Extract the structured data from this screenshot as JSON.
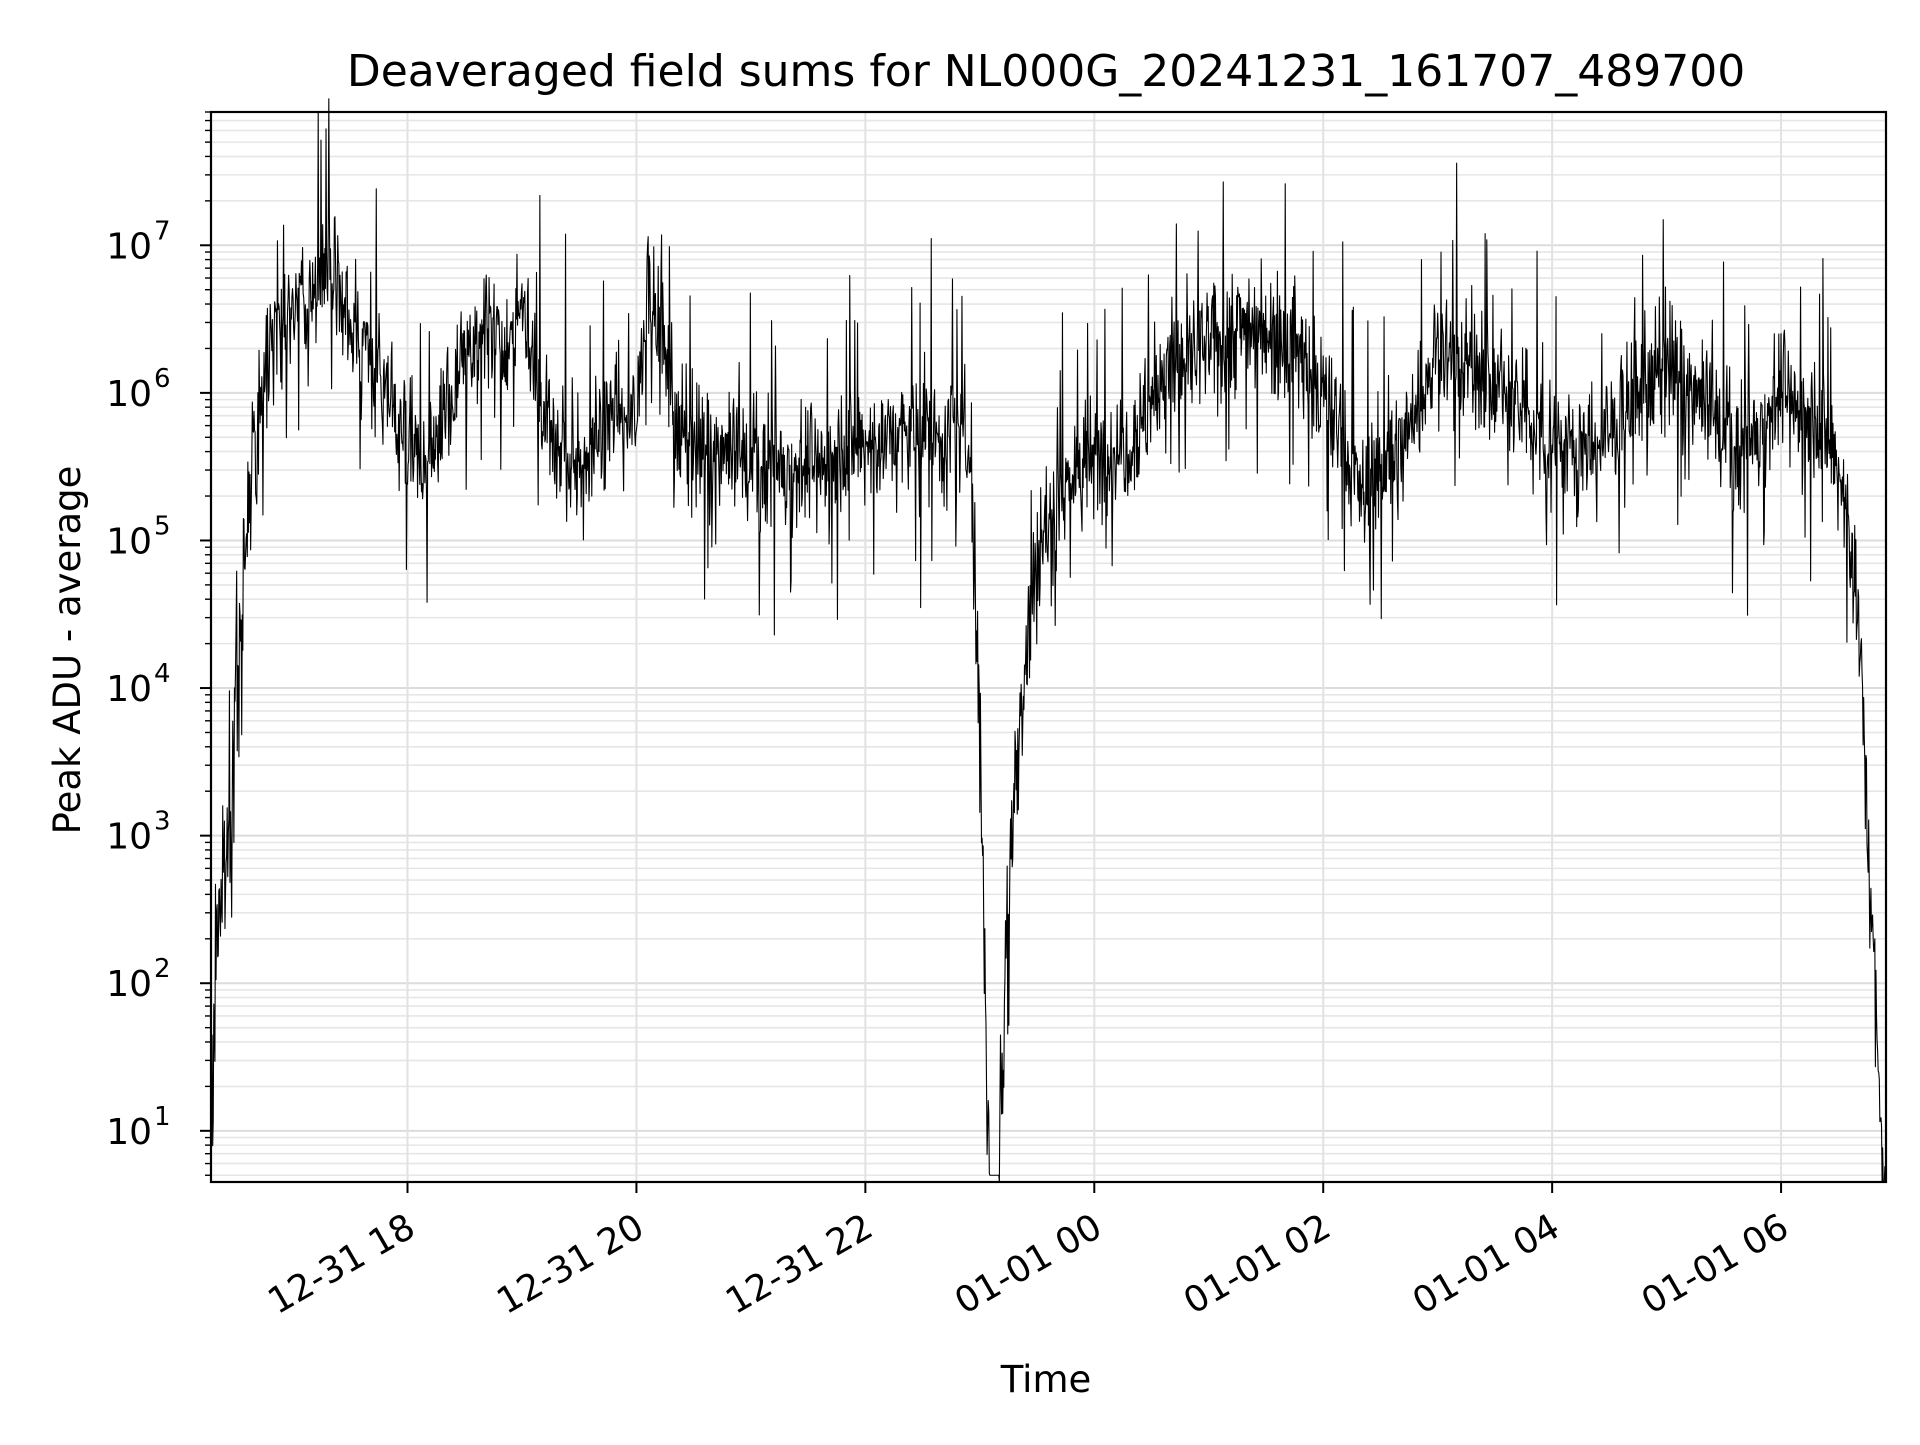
{
  "chart_data": {
    "type": "line",
    "title": "Deaveraged field sums for NL000G_20241231_161707_489700",
    "xlabel": "Time",
    "ylabel": "Peak ADU - average",
    "y_scale": "log",
    "ylim": [
      4.5,
      80000000
    ],
    "xlim": [
      "12-31 16:17",
      "01-01 06:55"
    ],
    "grid": true,
    "legend": "none",
    "line_color": "#000000",
    "x_ticks": [
      "12-31 18",
      "12-31 20",
      "12-31 22",
      "01-01 00",
      "01-01 02",
      "01-01 04",
      "01-01 06"
    ],
    "y_ticks": [
      {
        "base": "10",
        "exp": "1"
      },
      {
        "base": "10",
        "exp": "2"
      },
      {
        "base": "10",
        "exp": "3"
      },
      {
        "base": "10",
        "exp": "4"
      },
      {
        "base": "10",
        "exp": "5"
      },
      {
        "base": "10",
        "exp": "6"
      },
      {
        "base": "10",
        "exp": "7"
      }
    ],
    "series": [
      {
        "x": [
          "12-31 16:17",
          "12-31 16:20",
          "12-31 16:24",
          "12-31 16:28",
          "12-31 16:32",
          "12-31 16:36",
          "12-31 16:40",
          "12-31 16:45",
          "12-31 16:50",
          "12-31 16:55",
          "12-31 17:00",
          "12-31 17:10",
          "12-31 17:20",
          "12-31 17:30",
          "12-31 17:40",
          "12-31 17:50",
          "12-31 18:00",
          "12-31 18:10",
          "12-31 18:20",
          "12-31 18:30",
          "12-31 18:40",
          "12-31 18:50",
          "12-31 19:00",
          "12-31 19:10",
          "12-31 19:20",
          "12-31 19:30",
          "12-31 19:40",
          "12-31 19:50",
          "12-31 20:00",
          "12-31 20:05",
          "12-31 20:15",
          "12-31 20:20",
          "12-31 20:30",
          "12-31 21:00",
          "12-31 21:30",
          "12-31 22:00",
          "12-31 22:30",
          "12-31 22:55",
          "12-31 23:00",
          "12-31 23:05",
          "12-31 23:10",
          "12-31 23:15",
          "12-31 23:20",
          "12-31 23:25",
          "12-31 23:30",
          "12-31 23:40",
          "12-31 23:50",
          "01-01 00:00",
          "01-01 00:20",
          "01-01 00:40",
          "01-01 01:00",
          "01-01 01:20",
          "01-01 01:40",
          "01-01 02:00",
          "01-01 02:20",
          "01-01 02:40",
          "01-01 03:00",
          "01-01 03:20",
          "01-01 03:40",
          "01-01 04:00",
          "01-01 04:20",
          "01-01 04:40",
          "01-01 05:00",
          "01-01 05:20",
          "01-01 05:40",
          "01-01 06:00",
          "01-01 06:20",
          "01-01 06:30",
          "01-01 06:35",
          "01-01 06:40",
          "01-01 06:45",
          "01-01 06:48",
          "01-01 06:52",
          "01-01 06:55"
        ],
        "y": [
          5,
          300,
          500,
          2000,
          20000,
          150000,
          500000,
          1500000,
          3000000,
          4000000,
          3000000,
          5000000,
          6000000,
          3000000,
          2000000,
          1000000,
          500000,
          300000,
          800000,
          1500000,
          3000000,
          2000000,
          4000000,
          1000000,
          400000,
          300000,
          500000,
          800000,
          600000,
          5000000,
          2000000,
          600000,
          400000,
          350000,
          300000,
          450000,
          550000,
          500000,
          5000,
          5,
          5,
          500,
          5000,
          20000,
          80000,
          200000,
          300000,
          350000,
          500000,
          1500000,
          2000000,
          3000000,
          2500000,
          1000000,
          200000,
          400000,
          2000000,
          1500000,
          800000,
          500000,
          400000,
          800000,
          1500000,
          800000,
          400000,
          1000000,
          600000,
          300000,
          150000,
          40000,
          1500,
          200,
          10,
          5
        ]
      }
    ]
  }
}
